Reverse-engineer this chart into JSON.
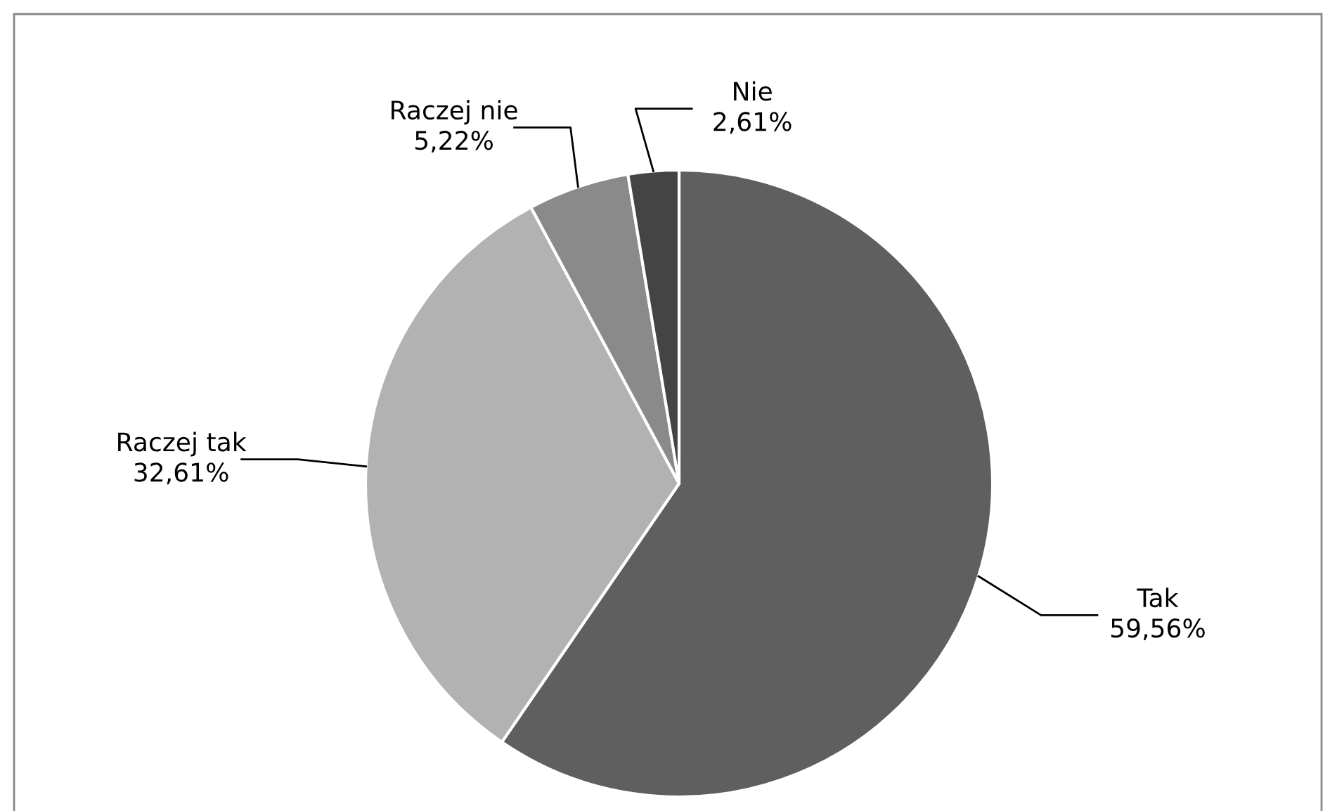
{
  "chart_data": {
    "type": "pie",
    "categories": [
      "Tak",
      "Raczej tak",
      "Raczej nie",
      "Nie"
    ],
    "values": [
      59.56,
      32.61,
      5.22,
      2.61
    ],
    "value_labels": [
      "59,56%",
      "32,61%",
      "5,22%",
      "2,61%"
    ],
    "colors": [
      "#5f5f5f",
      "#b2b2b2",
      "#8a8a8a",
      "#444444"
    ],
    "legend": false
  }
}
